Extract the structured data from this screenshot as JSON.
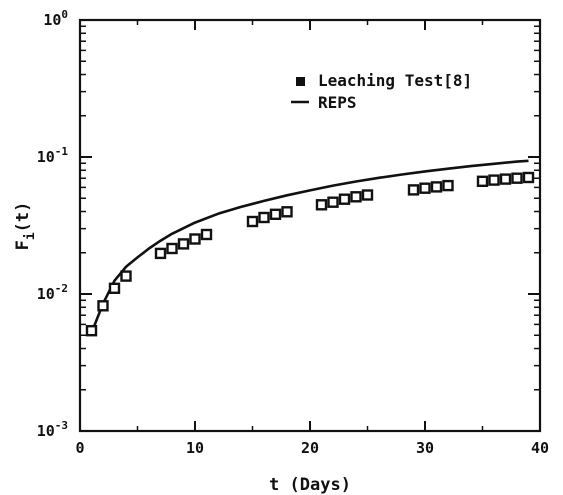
{
  "chart_data": {
    "type": "scatter",
    "xlabel": "t (Days)",
    "ylabel_main": "F",
    "ylabel_sub": "i",
    "ylabel_tail": "(t)",
    "xlim": [
      0,
      40
    ],
    "ylim": [
      0.001,
      1
    ],
    "yscale": "log",
    "grid": false,
    "legend_position": "top-right",
    "x_ticks": [
      {
        "value": 0,
        "label": "0"
      },
      {
        "value": 10,
        "label": "10"
      },
      {
        "value": 20,
        "label": "20"
      },
      {
        "value": 30,
        "label": "30"
      },
      {
        "value": 40,
        "label": "40"
      }
    ],
    "y_ticks": [
      {
        "value": 0.001,
        "base": "10",
        "exp": "-3"
      },
      {
        "value": 0.01,
        "base": "10",
        "exp": "-2"
      },
      {
        "value": 0.1,
        "base": "10",
        "exp": "-1"
      },
      {
        "value": 1,
        "base": "10",
        "exp": "0"
      }
    ],
    "series": [
      {
        "name": "Leaching Test[8]",
        "kind": "markers",
        "color": "#111111",
        "points": [
          [
            1,
            0.0054
          ],
          [
            2,
            0.0082
          ],
          [
            3,
            0.011
          ],
          [
            4,
            0.0135
          ],
          [
            7,
            0.0198
          ],
          [
            8,
            0.0215
          ],
          [
            9,
            0.0232
          ],
          [
            10,
            0.0252
          ],
          [
            11,
            0.0272
          ],
          [
            15,
            0.0338
          ],
          [
            16,
            0.0362
          ],
          [
            17,
            0.0382
          ],
          [
            18,
            0.0398
          ],
          [
            21,
            0.0448
          ],
          [
            22,
            0.0468
          ],
          [
            23,
            0.0492
          ],
          [
            24,
            0.0512
          ],
          [
            25,
            0.0528
          ],
          [
            29,
            0.0575
          ],
          [
            30,
            0.0592
          ],
          [
            31,
            0.0605
          ],
          [
            32,
            0.0618
          ],
          [
            35,
            0.0665
          ],
          [
            36,
            0.0678
          ],
          [
            37,
            0.069
          ],
          [
            38,
            0.07
          ],
          [
            39,
            0.0708
          ]
        ]
      },
      {
        "name": "REPS",
        "kind": "line",
        "color": "#111111",
        "points": [
          [
            1,
            0.0052
          ],
          [
            2,
            0.0085
          ],
          [
            3,
            0.0125
          ],
          [
            4,
            0.0158
          ],
          [
            5,
            0.0185
          ],
          [
            6,
            0.0215
          ],
          [
            7,
            0.0245
          ],
          [
            8,
            0.0275
          ],
          [
            9,
            0.0302
          ],
          [
            10,
            0.0332
          ],
          [
            12,
            0.0385
          ],
          [
            14,
            0.0432
          ],
          [
            16,
            0.0478
          ],
          [
            18,
            0.0525
          ],
          [
            20,
            0.057
          ],
          [
            22,
            0.0618
          ],
          [
            24,
            0.0662
          ],
          [
            26,
            0.0705
          ],
          [
            28,
            0.0745
          ],
          [
            30,
            0.0785
          ],
          [
            32,
            0.0822
          ],
          [
            34,
            0.0858
          ],
          [
            36,
            0.0892
          ],
          [
            38,
            0.0925
          ],
          [
            39,
            0.0938
          ]
        ]
      }
    ]
  }
}
